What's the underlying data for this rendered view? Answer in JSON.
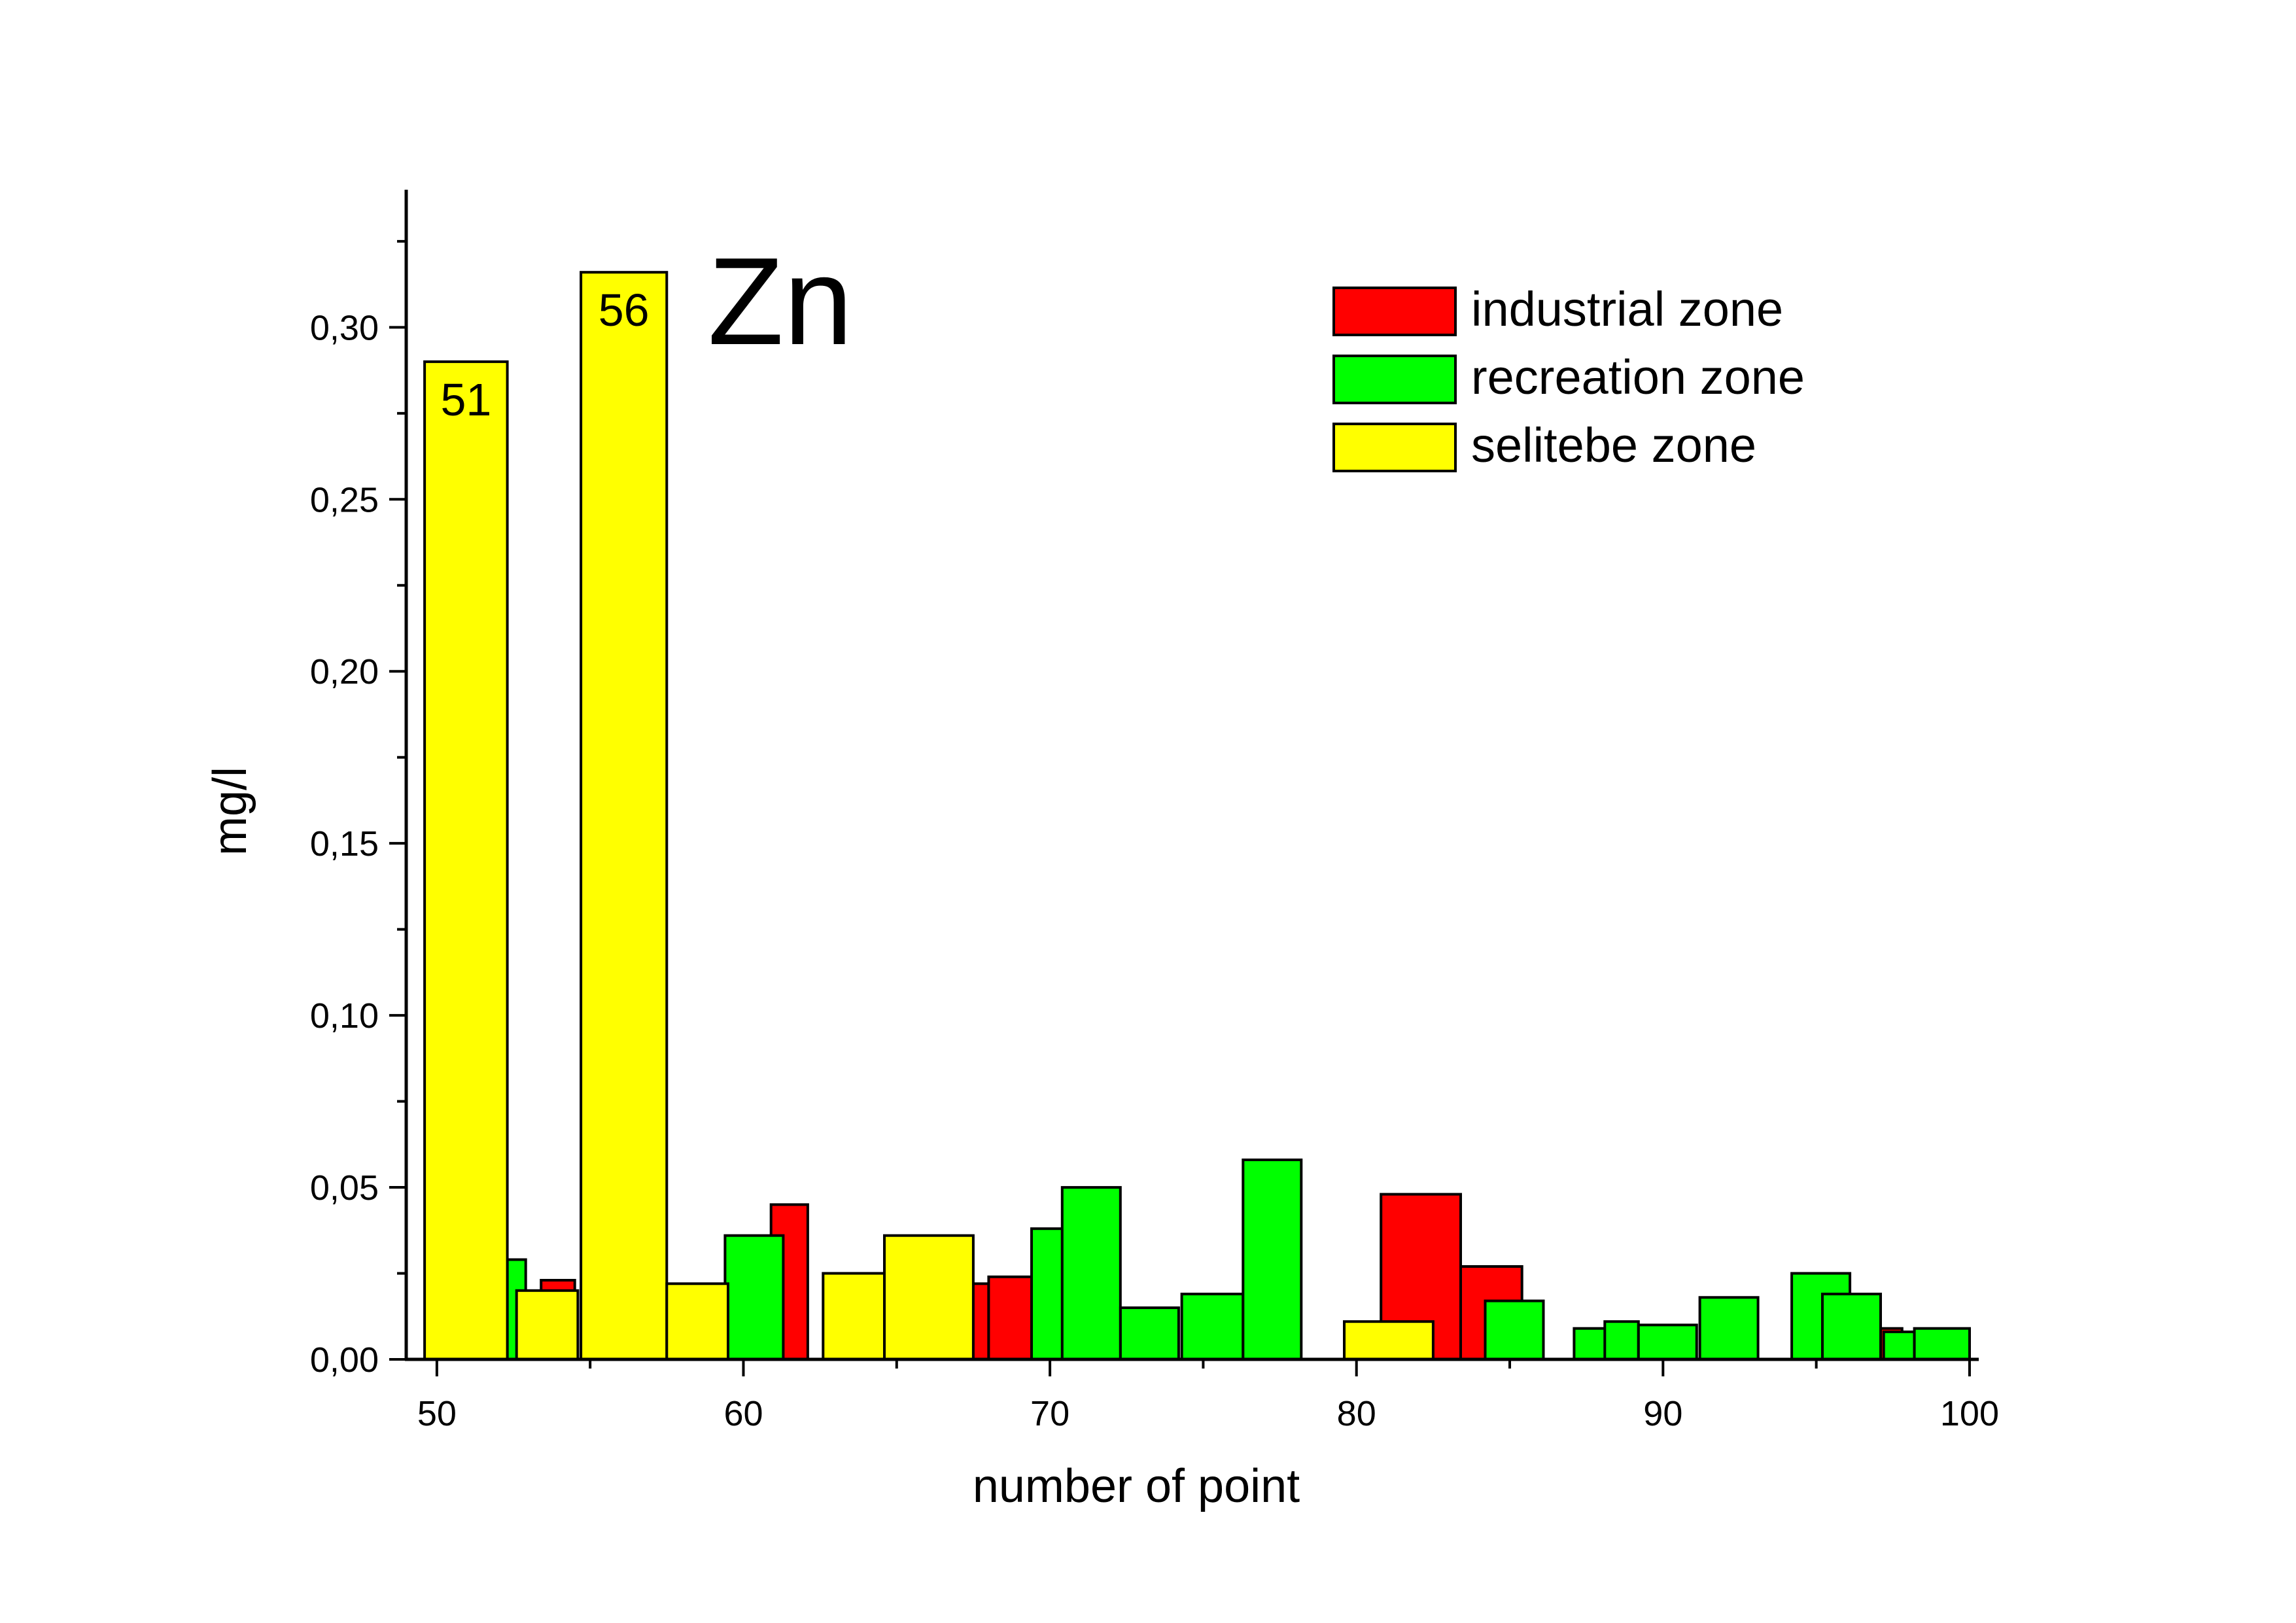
{
  "chart_data": {
    "type": "bar",
    "title": "Zn",
    "xlabel": "number of point",
    "ylabel": "mg/l",
    "xlim": [
      49,
      100.3
    ],
    "ylim": [
      0,
      0.34
    ],
    "x_ticks": [
      "50",
      "60",
      "70",
      "80",
      "90",
      "100"
    ],
    "x_tick_values": [
      50,
      60,
      70,
      80,
      90,
      100
    ],
    "y_ticks": [
      "0,00",
      "0,05",
      "0,10",
      "0,15",
      "0,20",
      "0,25",
      "0,30"
    ],
    "y_tick_values": [
      0,
      0.05,
      0.1,
      0.15,
      0.2,
      0.25,
      0.3
    ],
    "grid": false,
    "legend_position": "top-right",
    "series": [
      {
        "name": "industrial zone",
        "color": "#ff0000",
        "points": [
          {
            "x": 53.4,
            "x_end": 54.5,
            "y": 0.023
          },
          {
            "x": 60.9,
            "x_end": 62.1,
            "y": 0.045
          },
          {
            "x": 67.0,
            "x_end": 68.0,
            "y": 0.022
          },
          {
            "x": 68.0,
            "x_end": 69.4,
            "y": 0.024
          },
          {
            "x": 71.0,
            "x_end": 72.2,
            "y": 0.009
          },
          {
            "x": 80.8,
            "x_end": 83.4,
            "y": 0.048
          },
          {
            "x": 83.4,
            "x_end": 85.4,
            "y": 0.027
          },
          {
            "x": 96.5,
            "x_end": 97.8,
            "y": 0.009
          }
        ]
      },
      {
        "name": "recreation zone",
        "color": "#00ff00",
        "points": [
          {
            "x": 52.3,
            "x_end": 52.9,
            "y": 0.029
          },
          {
            "x": 59.4,
            "x_end": 61.3,
            "y": 0.036
          },
          {
            "x": 69.4,
            "x_end": 70.4,
            "y": 0.038
          },
          {
            "x": 70.4,
            "x_end": 72.3,
            "y": 0.05
          },
          {
            "x": 72.3,
            "x_end": 74.2,
            "y": 0.015
          },
          {
            "x": 74.3,
            "x_end": 76.3,
            "y": 0.019
          },
          {
            "x": 76.3,
            "x_end": 78.2,
            "y": 0.058
          },
          {
            "x": 84.2,
            "x_end": 86.1,
            "y": 0.017
          },
          {
            "x": 87.1,
            "x_end": 89.1,
            "y": 0.009
          },
          {
            "x": 88.1,
            "x_end": 89.2,
            "y": 0.011
          },
          {
            "x": 89.2,
            "x_end": 91.1,
            "y": 0.01
          },
          {
            "x": 91.2,
            "x_end": 93.1,
            "y": 0.018
          },
          {
            "x": 94.2,
            "x_end": 96.1,
            "y": 0.025
          },
          {
            "x": 95.2,
            "x_end": 97.1,
            "y": 0.019
          },
          {
            "x": 97.2,
            "x_end": 98.2,
            "y": 0.008
          },
          {
            "x": 98.2,
            "x_end": 100.0,
            "y": 0.009
          }
        ]
      },
      {
        "name": "selitebe zone",
        "color": "#ffff00",
        "points": [
          {
            "x": 49.6,
            "x_end": 52.3,
            "y": 0.29,
            "label": "51"
          },
          {
            "x": 52.6,
            "x_end": 54.6,
            "y": 0.02
          },
          {
            "x": 54.7,
            "x_end": 57.5,
            "y": 0.316,
            "label": "56"
          },
          {
            "x": 57.5,
            "x_end": 59.5,
            "y": 0.022
          },
          {
            "x": 62.6,
            "x_end": 64.6,
            "y": 0.025
          },
          {
            "x": 64.6,
            "x_end": 67.5,
            "y": 0.036
          },
          {
            "x": 79.6,
            "x_end": 82.5,
            "y": 0.011
          }
        ]
      }
    ]
  }
}
